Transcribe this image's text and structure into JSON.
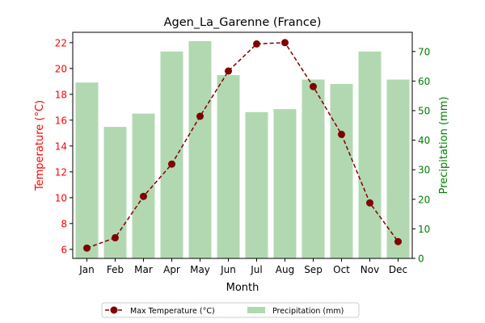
{
  "chart_data": {
    "type": "bar+line",
    "title": "Agen_La_Garenne (France)",
    "xlabel": "Month",
    "ylabel_left": "Temperature (°C)",
    "ylabel_right": "Precipitation (mm)",
    "categories": [
      "Jan",
      "Feb",
      "Mar",
      "Apr",
      "May",
      "Jun",
      "Jul",
      "Aug",
      "Sep",
      "Oct",
      "Nov",
      "Dec"
    ],
    "ylim_left": [
      5.3,
      22.8
    ],
    "ylim_right": [
      0,
      76.5
    ],
    "yticks_left": [
      6,
      8,
      10,
      12,
      14,
      16,
      18,
      20,
      22
    ],
    "yticks_right": [
      0,
      10,
      20,
      30,
      40,
      50,
      60,
      70
    ],
    "series": [
      {
        "name": "Max Temperature (°C)",
        "type": "line",
        "axis": "left",
        "color": "#800000",
        "values": [
          6.1,
          6.9,
          10.1,
          12.6,
          16.3,
          19.8,
          21.9,
          22.0,
          18.6,
          14.9,
          9.6,
          6.6
        ]
      },
      {
        "name": "Precipitation (mm)",
        "type": "bar",
        "axis": "right",
        "color": "#b2d8b2",
        "values": [
          59.5,
          44.5,
          49.0,
          70.0,
          73.5,
          62.0,
          49.5,
          50.5,
          60.5,
          59.0,
          70.0,
          60.5
        ]
      }
    ],
    "legend_position": "bottom-center"
  },
  "colors": {
    "left_axis": "#ff0000",
    "right_axis": "#008000"
  }
}
